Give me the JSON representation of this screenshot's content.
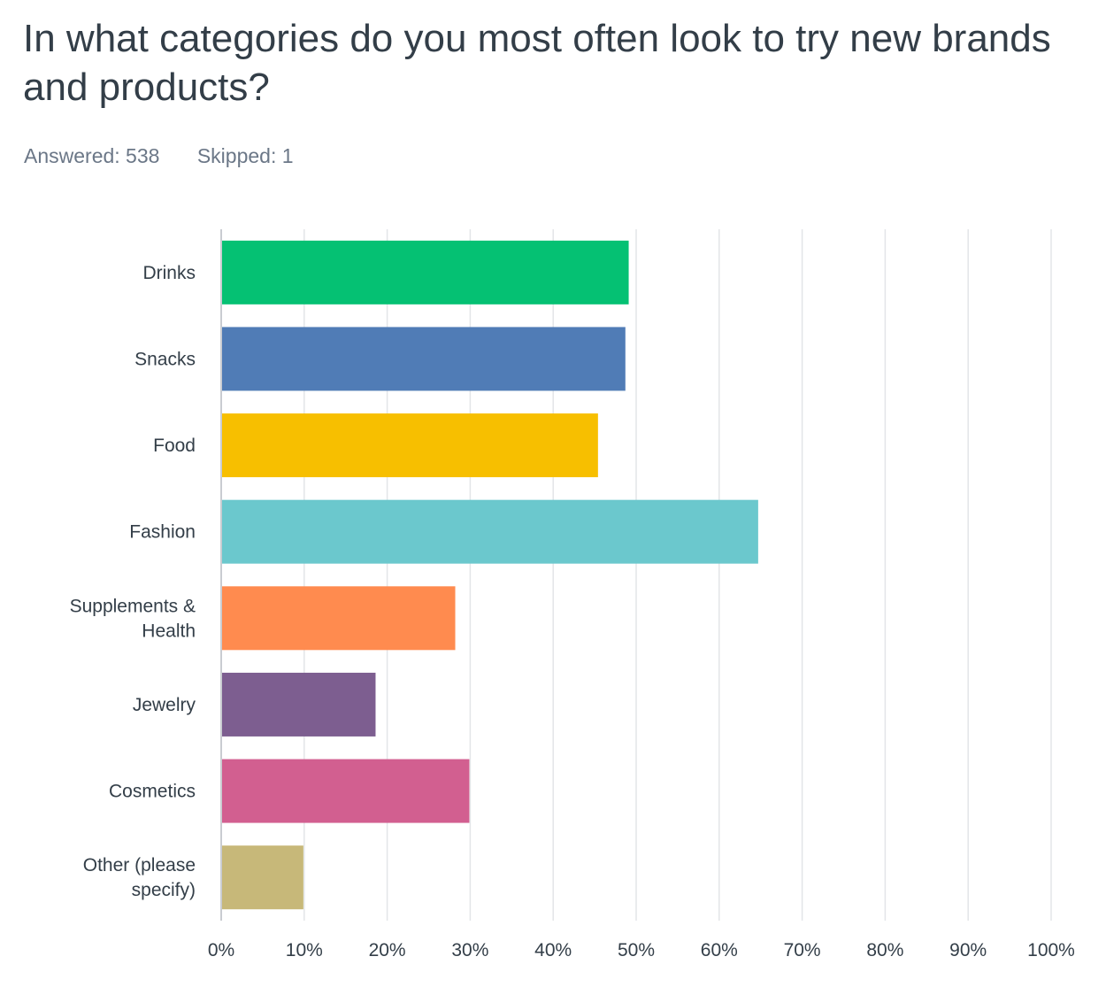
{
  "question": {
    "title": "In what categories do you most often look to try new brands and products?",
    "answered": "Answered: 538",
    "skipped": "Skipped: 1"
  },
  "chart_data": {
    "type": "bar",
    "orientation": "horizontal",
    "categories": [
      "Drinks",
      "Snacks",
      "Food",
      "Fashion",
      "Supplements & Health",
      "Jewelry",
      "Cosmetics",
      "Other (please specify)"
    ],
    "category_lines": [
      [
        "Drinks"
      ],
      [
        "Snacks"
      ],
      [
        "Food"
      ],
      [
        "Fashion"
      ],
      [
        "Supplements &",
        "Health"
      ],
      [
        "Jewelry"
      ],
      [
        "Cosmetics"
      ],
      [
        "Other (please",
        "specify)"
      ]
    ],
    "values": [
      49.1,
      48.7,
      45.4,
      64.7,
      28.2,
      18.6,
      29.9,
      9.9
    ],
    "colors": [
      "#05c173",
      "#507cb6",
      "#f7bf00",
      "#6bc8cd",
      "#ff8b4f",
      "#7d5e90",
      "#d25f90",
      "#c7b879"
    ],
    "xlim": [
      0,
      100
    ],
    "ticks": [
      "0%",
      "10%",
      "20%",
      "30%",
      "40%",
      "50%",
      "60%",
      "70%",
      "80%",
      "90%",
      "100%"
    ],
    "grid": true,
    "xlabel": "",
    "ylabel": ""
  }
}
